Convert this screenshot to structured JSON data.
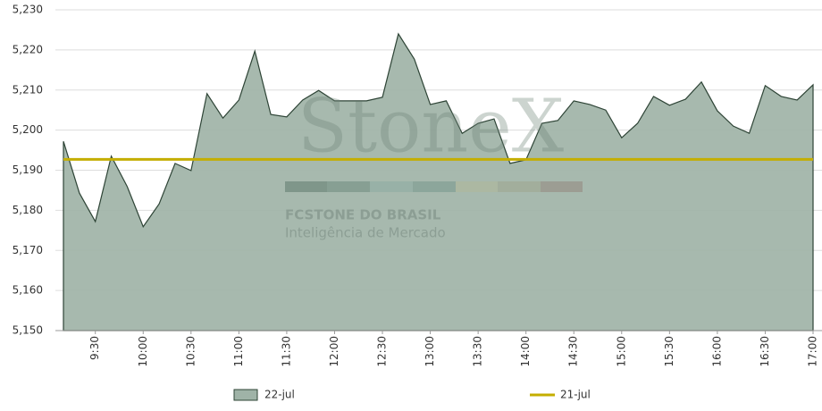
{
  "chart_data": {
    "type": "area",
    "watermark": {
      "brand": "StoneX",
      "company": "FCSTONE DO BRASIL",
      "tagline": "Inteligência de Mercado"
    },
    "categories": [
      null,
      null,
      "9:30",
      null,
      null,
      "10:00",
      null,
      null,
      "10:30",
      null,
      null,
      "11:00",
      null,
      null,
      "11:30",
      null,
      null,
      "12:00",
      null,
      null,
      "12:30",
      null,
      null,
      "13:00",
      null,
      null,
      "13:30",
      null,
      null,
      "14:00",
      null,
      null,
      "14:30",
      null,
      null,
      "15:00",
      null,
      null,
      "15:30",
      null,
      null,
      "16:00",
      null,
      null,
      "16:30",
      null,
      null,
      "17:00"
    ],
    "series": [
      {
        "name": "22-jul",
        "color": "#9fb3a7",
        "stroke": "#2e4436",
        "values": [
          5197.2,
          5184.3,
          5177.2,
          5193.5,
          5185.9,
          5175.9,
          5181.6,
          5191.7,
          5189.9,
          5209.1,
          5203.0,
          5207.5,
          5219.7,
          5203.9,
          5203.3,
          5207.5,
          5209.9,
          5207.3,
          5207.3,
          5207.3,
          5208.2,
          5224.0,
          5217.7,
          5206.4,
          5207.3,
          5199.2,
          5201.7,
          5202.8,
          5191.7,
          5192.6,
          5201.7,
          5202.4,
          5207.3,
          5206.4,
          5205.0,
          5198.1,
          5201.7,
          5208.4,
          5206.2,
          5207.7,
          5212.0,
          5204.8,
          5201.0,
          5199.2,
          5211.1,
          5208.4,
          5207.5,
          5211.3
        ]
      },
      {
        "name": "21-jul",
        "color": "#c4ae00",
        "kind": "line",
        "values": [
          5192.7,
          5192.7,
          5192.7,
          5192.7,
          5192.7,
          5192.7,
          5192.7,
          5192.7,
          5192.7,
          5192.7,
          5192.7,
          5192.7,
          5192.7,
          5192.7,
          5192.7,
          5192.7,
          5192.7,
          5192.7,
          5192.7,
          5192.7,
          5192.7,
          5192.7,
          5192.7,
          5192.7,
          5192.7,
          5192.7,
          5192.7,
          5192.7,
          5192.7,
          5192.7,
          5192.7,
          5192.7,
          5192.7,
          5192.7,
          5192.7,
          5192.7,
          5192.7,
          5192.7,
          5192.7,
          5192.7,
          5192.7,
          5192.7,
          5192.7,
          5192.7,
          5192.7,
          5192.7,
          5192.7,
          5192.7
        ]
      }
    ],
    "ylim": [
      5150,
      5230
    ],
    "yticks": [
      {
        "value": 5150,
        "label": "5,150"
      },
      {
        "value": 5160,
        "label": "5,160"
      },
      {
        "value": 5170,
        "label": "5,170"
      },
      {
        "value": 5180,
        "label": "5,180"
      },
      {
        "value": 5190,
        "label": "5,190"
      },
      {
        "value": 5200,
        "label": "5,200"
      },
      {
        "value": 5210,
        "label": "5,210"
      },
      {
        "value": 5220,
        "label": "5,220"
      },
      {
        "value": 5230,
        "label": "5,230"
      }
    ],
    "grid": true,
    "legend": "bottom"
  }
}
